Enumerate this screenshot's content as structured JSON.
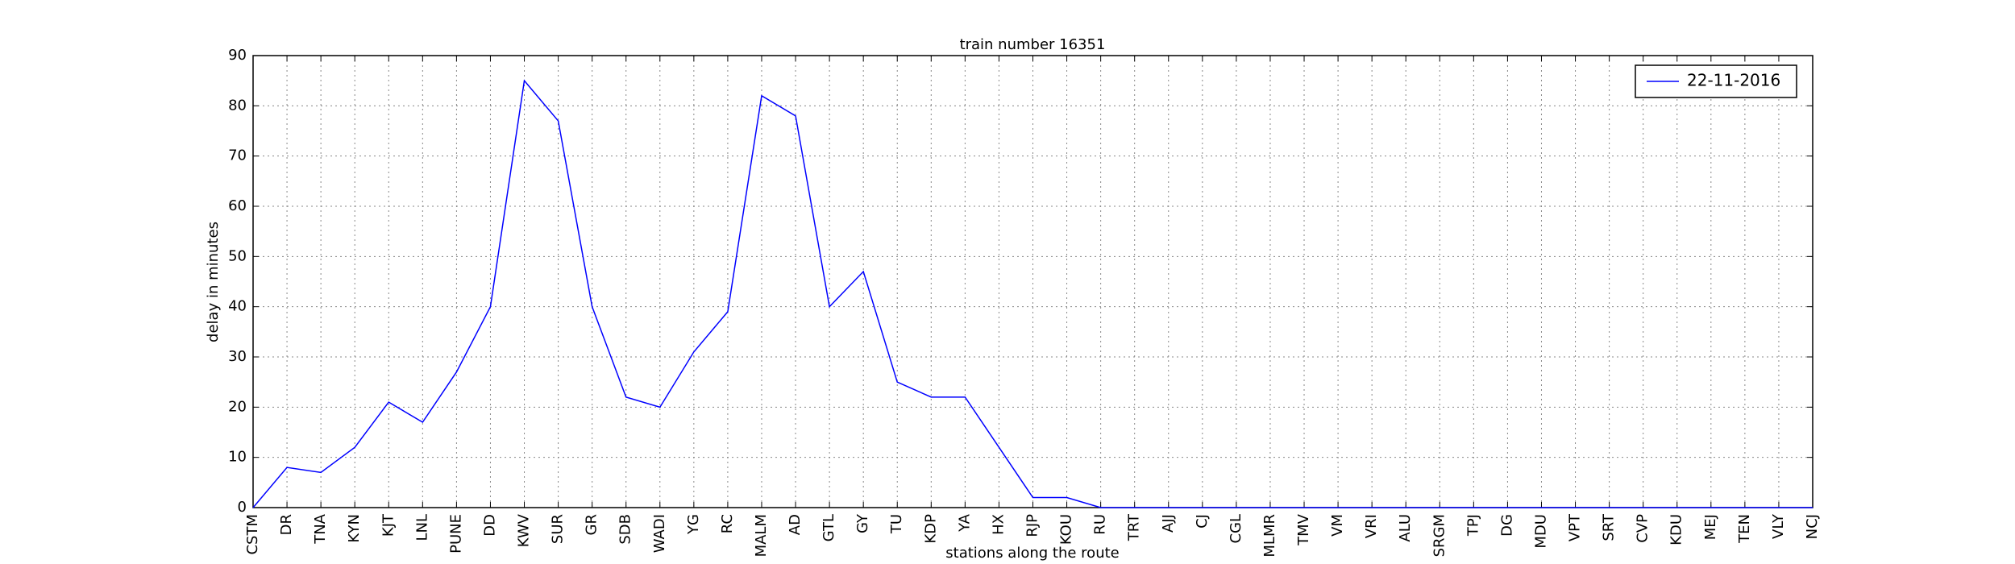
{
  "chart_data": {
    "type": "line",
    "title": "train number 16351",
    "x_label": "stations along the route",
    "y_label": "delay in minutes",
    "categories": [
      "CSTM",
      "DR",
      "TNA",
      "KYN",
      "KJT",
      "LNL",
      "PUNE",
      "DD",
      "KWV",
      "SUR",
      "GR",
      "SDB",
      "WADI",
      "YG",
      "RC",
      "MALM",
      "AD",
      "GTL",
      "GY",
      "TU",
      "KDP",
      "YA",
      "HX",
      "RJP",
      "KOU",
      "RU",
      "TRT",
      "AJJ",
      "CJ",
      "CGL",
      "MLMR",
      "TMV",
      "VM",
      "VRI",
      "ALU",
      "SRGM",
      "TPJ",
      "DG",
      "MDU",
      "VPT",
      "SRT",
      "CVP",
      "KDU",
      "MEJ",
      "TEN",
      "VLY",
      "NCJ"
    ],
    "series": [
      {
        "name": "22-11-2016",
        "color": "#0000ff",
        "values": [
          0,
          8,
          7,
          12,
          21,
          17,
          27,
          40,
          85,
          77,
          40,
          22,
          20,
          31,
          39,
          82,
          78,
          40,
          47,
          25,
          22,
          22,
          12,
          2,
          2,
          0,
          0,
          0,
          0,
          0,
          0,
          0,
          0,
          0,
          0,
          0,
          0,
          0,
          0,
          0,
          0,
          0,
          0,
          0,
          0,
          0,
          0
        ]
      }
    ],
    "ylim": [
      0,
      90
    ],
    "yticks": [
      0,
      10,
      20,
      30,
      40,
      50,
      60,
      70,
      80,
      90
    ],
    "grid": true,
    "legend": "upper right"
  }
}
